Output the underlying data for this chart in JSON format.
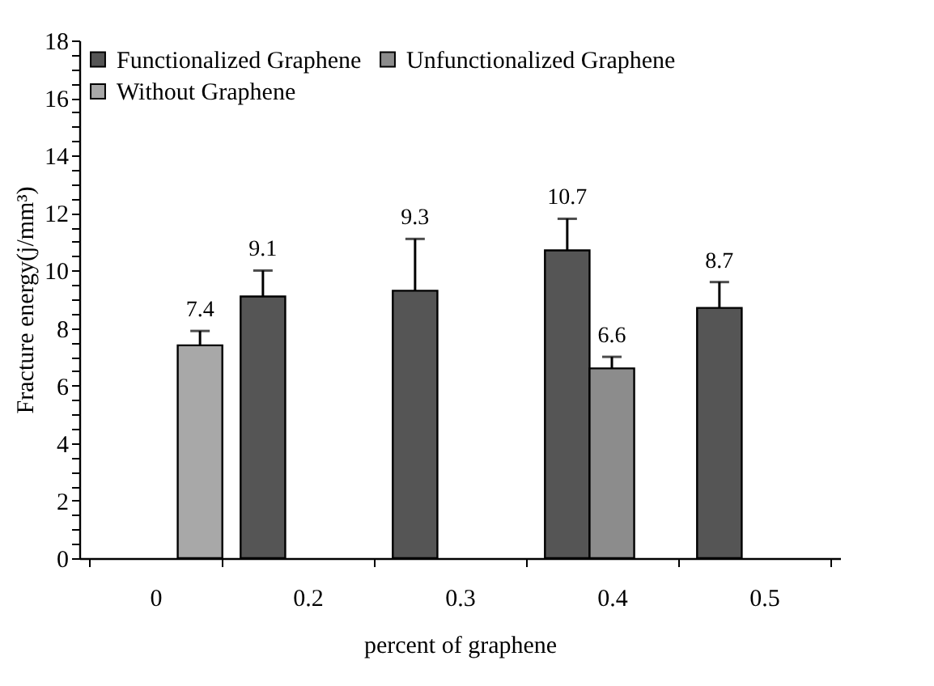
{
  "chart_data": {
    "type": "bar",
    "xlabel": "percent of graphene",
    "ylabel": "Fracture energy(j/mm³)",
    "categories": [
      "0",
      "0.2",
      "0.3",
      "0.4",
      "0.5"
    ],
    "series": [
      {
        "name": "Functionalized Graphene",
        "color": "#555555",
        "values": [
          null,
          9.1,
          9.3,
          10.7,
          8.7
        ],
        "errors": [
          null,
          [
            9.1,
            10.0
          ],
          [
            9.3,
            11.1
          ],
          [
            10.7,
            11.8
          ],
          [
            8.7,
            9.6
          ]
        ]
      },
      {
        "name": "Unfunctionalized Graphene",
        "color": "#8c8c8c",
        "values": [
          null,
          null,
          null,
          6.6,
          null
        ],
        "errors": [
          null,
          null,
          null,
          [
            6.6,
            7.0
          ],
          null
        ]
      },
      {
        "name": "Without Graphene",
        "color": "#a8a8a8",
        "values": [
          7.4,
          null,
          null,
          null,
          null
        ],
        "errors": [
          [
            7.4,
            7.9
          ],
          null,
          null,
          null,
          null
        ]
      }
    ],
    "ylim": [
      0,
      18
    ],
    "yticks": [
      0,
      {
        "value": 0.5,
        "label": null
      },
      {
        "value": 1,
        "label": null
      },
      {
        "value": 1.5,
        "label": null
      },
      2,
      {
        "value": 2.5,
        "label": null
      },
      {
        "value": 3,
        "label": null
      },
      {
        "value": 3.5,
        "label": null
      },
      4,
      {
        "value": 4.5,
        "label": null
      },
      {
        "value": 5,
        "label": null
      },
      {
        "value": 5.5,
        "label": null
      },
      6,
      {
        "value": 6.5,
        "label": null
      },
      {
        "value": 7,
        "label": null
      },
      {
        "value": 7.5,
        "label": null
      },
      8,
      {
        "value": 8.5,
        "label": null
      },
      {
        "value": 9,
        "label": null
      },
      {
        "value": 9.5,
        "label": null
      },
      10,
      {
        "value": 10.5,
        "label": null
      },
      {
        "value": 11,
        "label": null
      },
      {
        "value": 11.5,
        "label": null
      },
      12,
      {
        "value": 12.5,
        "label": null
      },
      {
        "value": 13,
        "label": null
      },
      {
        "value": 13.5,
        "label": null
      },
      14,
      {
        "value": 14.5,
        "label": null
      },
      {
        "value": 15,
        "label": null
      },
      {
        "value": 15.5,
        "label": null
      },
      16,
      {
        "value": 16.5,
        "label": null
      },
      {
        "value": 17,
        "label": null
      },
      {
        "value": 17.5,
        "label": null
      },
      18
    ],
    "data_labels": true,
    "legend": "top left",
    "grid": false
  }
}
